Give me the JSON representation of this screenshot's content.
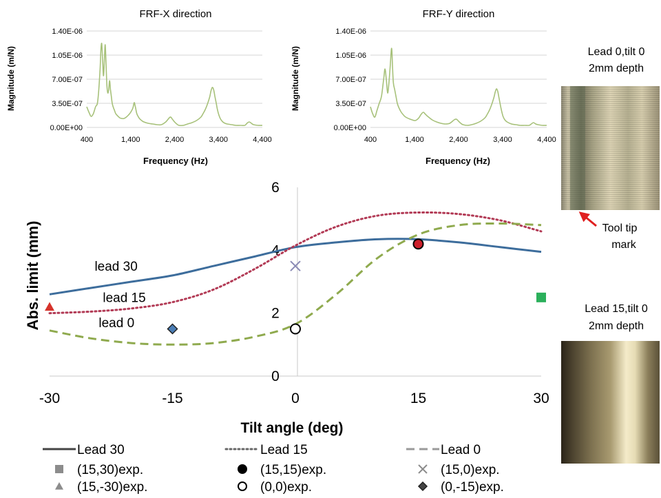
{
  "chart_data": [
    {
      "type": "line",
      "title": "FRF-X direction",
      "xlabel": "Frequency (Hz)",
      "ylabel": "Magnitude (m/N)",
      "xlim": [
        400,
        4400
      ],
      "ylim": [
        0,
        1.4e-06
      ],
      "xticks": [
        400,
        1400,
        2400,
        3400,
        4400
      ],
      "xtick_labels": [
        "400",
        "1,400",
        "2,400",
        "3,400",
        "4,400"
      ],
      "yticks": [
        0,
        3.5e-07,
        7e-07,
        1.05e-06,
        1.4e-06
      ],
      "ytick_labels": [
        "0.00E+00",
        "3.50E-07",
        "7.00E-07",
        "1.05E-06",
        "1.40E-06"
      ],
      "grid": "horizontal",
      "series_color": "#a7c17a",
      "series": [
        {
          "x": [
            400,
            450,
            500,
            550,
            600,
            650,
            700,
            720,
            740,
            760,
            780,
            800,
            820,
            840,
            860,
            880,
            900,
            920,
            940,
            960,
            980,
            1000,
            1030,
            1060,
            1100,
            1150,
            1200,
            1250,
            1300,
            1350,
            1400,
            1450,
            1480,
            1500,
            1520,
            1540,
            1570,
            1600,
            1650,
            1700,
            1800,
            1900,
            2000,
            2100,
            2200,
            2300,
            2350,
            2400,
            2450,
            2500,
            2600,
            2700,
            2800,
            2900,
            3000,
            3050,
            3100,
            3150,
            3200,
            3230,
            3260,
            3290,
            3320,
            3350,
            3380,
            3410,
            3450,
            3500,
            3550,
            3600,
            3700,
            3800,
            3900,
            4000,
            4050,
            4100,
            4150,
            4200,
            4300,
            4400
          ],
          "y": [
            3e-07,
            2.2e-07,
            1.6e-07,
            2e-07,
            3e-07,
            3.8e-07,
            8e-07,
            1.1e-06,
            1.22e-06,
            1e-06,
            7.5e-07,
            9.5e-07,
            1.2e-06,
            9e-07,
            6e-07,
            5e-07,
            5.5e-07,
            6.8e-07,
            5.5e-07,
            4.5e-07,
            3.5e-07,
            3e-07,
            2.5e-07,
            2e-07,
            1.7e-07,
            1.4e-07,
            1.3e-07,
            1.3e-07,
            1.5e-07,
            1.8e-07,
            2.2e-07,
            2.8e-07,
            3.6e-07,
            3.2e-07,
            2.6e-07,
            2e-07,
            1.6e-07,
            1.3e-07,
            1e-07,
            8e-08,
            6e-08,
            5e-08,
            4e-08,
            4e-08,
            8e-08,
            1.5e-07,
            1.2e-07,
            8e-08,
            5e-08,
            3e-08,
            3e-08,
            5e-08,
            7e-08,
            1e-07,
            1.5e-07,
            2e-07,
            2.6e-07,
            3.4e-07,
            4.4e-07,
            5.3e-07,
            5.8e-07,
            5.5e-07,
            4.5e-07,
            3.5e-07,
            2.5e-07,
            1.8e-07,
            1.2e-07,
            8e-08,
            6e-08,
            5e-08,
            4e-08,
            3e-08,
            3e-08,
            3e-08,
            6e-08,
            8e-08,
            6e-08,
            4e-08,
            3e-08,
            3e-08
          ]
        }
      ]
    },
    {
      "type": "line",
      "title": "FRF-Y direction",
      "xlabel": "Frequency (Hz)",
      "ylabel": "Magnitude (m/N)",
      "xlim": [
        400,
        4400
      ],
      "ylim": [
        0,
        1.4e-06
      ],
      "xticks": [
        400,
        1400,
        2400,
        3400,
        4400
      ],
      "xtick_labels": [
        "400",
        "1,400",
        "2,400",
        "3,400",
        "4,400"
      ],
      "yticks": [
        0,
        3.5e-07,
        7e-07,
        1.05e-06,
        1.4e-06
      ],
      "ytick_labels": [
        "0.00E+00",
        "3.50E-07",
        "7.00E-07",
        "1.05E-06",
        "1.40E-06"
      ],
      "grid": "horizontal",
      "series_color": "#a7c17a",
      "series": [
        {
          "x": [
            400,
            450,
            500,
            550,
            600,
            650,
            700,
            730,
            760,
            790,
            820,
            850,
            880,
            900,
            920,
            950,
            980,
            1010,
            1050,
            1100,
            1150,
            1200,
            1300,
            1400,
            1450,
            1500,
            1550,
            1600,
            1650,
            1700,
            1800,
            1900,
            2000,
            2100,
            2200,
            2300,
            2350,
            2400,
            2450,
            2500,
            2600,
            2700,
            2800,
            2900,
            3000,
            3050,
            3100,
            3150,
            3200,
            3230,
            3260,
            3290,
            3320,
            3350,
            3380,
            3410,
            3450,
            3500,
            3600,
            3700,
            3800,
            3900,
            4000,
            4050,
            4100,
            4150,
            4200,
            4300,
            4400
          ],
          "y": [
            3e-07,
            2e-07,
            1.5e-07,
            2.5e-07,
            3.5e-07,
            4.5e-07,
            7e-07,
            8.5e-07,
            7e-07,
            5e-07,
            6.5e-07,
            9e-07,
            1.15e-06,
            9e-07,
            6.5e-07,
            5.5e-07,
            4.5e-07,
            3.5e-07,
            2.8e-07,
            2.2e-07,
            1.8e-07,
            1.5e-07,
            1.2e-07,
            1e-07,
            1.1e-07,
            1.4e-07,
            1.9e-07,
            2.2e-07,
            1.9e-07,
            1.6e-07,
            1.1e-07,
            8e-08,
            6e-08,
            5e-08,
            6e-08,
            1.1e-07,
            1.2e-07,
            9e-08,
            6e-08,
            4e-08,
            3e-08,
            4e-08,
            6e-08,
            9e-08,
            1.4e-07,
            1.9e-07,
            2.5e-07,
            3.3e-07,
            4.3e-07,
            5.1e-07,
            5.6e-07,
            5.2e-07,
            4.2e-07,
            3.2e-07,
            2.3e-07,
            1.6e-07,
            1.1e-07,
            8e-08,
            5e-08,
            4e-08,
            3e-08,
            3e-08,
            3e-08,
            5e-08,
            7e-08,
            5e-08,
            4e-08,
            3e-08,
            3e-08
          ]
        }
      ]
    },
    {
      "type": "line",
      "title": "",
      "xlabel": "Tilt angle (deg)",
      "ylabel": "Abs. limit (mm)",
      "xlim": [
        -30,
        30
      ],
      "ylim": [
        0,
        6
      ],
      "xticks": [
        -30,
        -15,
        0,
        15,
        30
      ],
      "yticks": [
        0,
        2,
        4,
        6
      ],
      "grid": "axis-lines-at-zero",
      "series": [
        {
          "name": "Lead 30",
          "style": "solid",
          "color": "#3d6d9c",
          "x": [
            -30,
            -25,
            -20,
            -15,
            -10,
            -5,
            0,
            5,
            10,
            15,
            20,
            25,
            30
          ],
          "y": [
            2.6,
            2.8,
            3.0,
            3.2,
            3.5,
            3.8,
            4.1,
            4.25,
            4.35,
            4.35,
            4.25,
            4.1,
            3.95
          ]
        },
        {
          "name": "Lead 15",
          "style": "dotted",
          "color": "#b23a55",
          "x": [
            -30,
            -25,
            -20,
            -15,
            -10,
            -5,
            0,
            5,
            10,
            15,
            20,
            25,
            30
          ],
          "y": [
            2.0,
            2.05,
            2.15,
            2.35,
            2.75,
            3.4,
            4.15,
            4.75,
            5.1,
            5.2,
            5.15,
            4.95,
            4.6
          ]
        },
        {
          "name": "Lead 0",
          "style": "dashed",
          "color": "#8faa4e",
          "x": [
            -30,
            -25,
            -20,
            -15,
            -10,
            -5,
            0,
            5,
            10,
            15,
            20,
            25,
            30
          ],
          "y": [
            1.45,
            1.2,
            1.05,
            1.0,
            1.05,
            1.25,
            1.65,
            2.6,
            3.75,
            4.5,
            4.8,
            4.85,
            4.8
          ]
        }
      ],
      "experiments": [
        {
          "label": "(15,30)exp.",
          "x": 30,
          "y": 2.5,
          "marker": "square",
          "color": "#2bb05b",
          "legend_color": "#8c8c8c"
        },
        {
          "label": "(15,15)exp.",
          "x": 15,
          "y": 4.2,
          "marker": "circle",
          "color": "#cc1f2b",
          "legend_color": "#000000"
        },
        {
          "label": "(15,0)exp.",
          "x": 0,
          "y": 3.5,
          "marker": "x",
          "color": "#8a8ab5",
          "legend_color": "#8c8c8c"
        },
        {
          "label": "(15,-30)exp.",
          "x": -30,
          "y": 2.2,
          "marker": "triangle",
          "color": "#d6332b",
          "legend_color": "#8c8c8c"
        },
        {
          "label": "(0,0)exp.",
          "x": 0,
          "y": 1.5,
          "marker": "open-circle",
          "color": "#000000",
          "legend_color": "#000000"
        },
        {
          "label": "(0,-15)exp.",
          "x": -15,
          "y": 1.5,
          "marker": "diamond",
          "color": "#4a7db5",
          "legend_color": "#444444"
        }
      ],
      "annotations": [
        {
          "text": "lead 30",
          "x": -24.5,
          "y": 3.35
        },
        {
          "text": "lead 15",
          "x": -23.5,
          "y": 2.35
        },
        {
          "text": "lead 0",
          "x": -24,
          "y": 1.55
        }
      ],
      "legend": "bottom"
    }
  ],
  "photos": [
    {
      "caption_line1": "Lead 0,tilt 0",
      "caption_line2": "2mm depth",
      "annotation_line1": "Tool tip",
      "annotation_line2": "mark"
    },
    {
      "caption_line1": "Lead 15,tilt 0",
      "caption_line2": "2mm depth"
    }
  ]
}
